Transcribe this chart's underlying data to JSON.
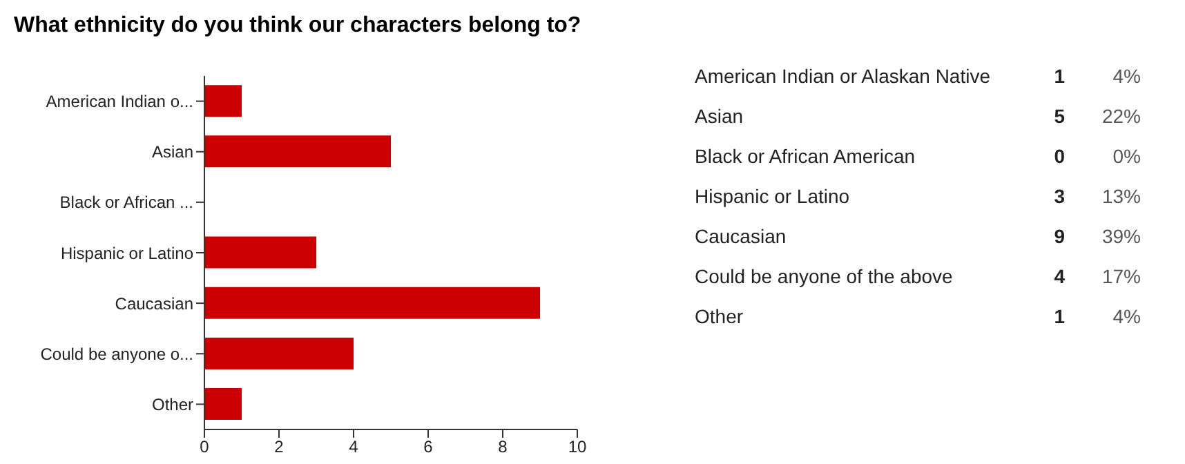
{
  "chart_data": [
    {
      "type": "bar",
      "orientation": "horizontal",
      "title": "What ethnicity do you think our characters belong to?",
      "categories": [
        "American Indian o...",
        "Asian",
        "Black or African ...",
        "Hispanic or Latino",
        "Caucasian",
        "Could be anyone o...",
        "Other"
      ],
      "values": [
        1,
        5,
        0,
        3,
        9,
        4,
        1
      ],
      "color": "#cc0000",
      "xlim": [
        0,
        10
      ],
      "xticks": [
        0,
        2,
        4,
        6,
        8,
        10
      ],
      "grid": false,
      "legend": false
    },
    {
      "type": "other",
      "categories": [
        "American Indian or Alaskan Native",
        "Asian",
        "Black or African American",
        "Hispanic or Latino",
        "Caucasian",
        "Could be anyone of the above",
        "Other"
      ],
      "series": [
        {
          "values": [
            1,
            5,
            0,
            3,
            9,
            4,
            1
          ]
        },
        {
          "values": [
            4,
            22,
            0,
            13,
            39,
            17,
            4
          ],
          "value_labels": [
            "4%",
            "22%",
            "0%",
            "13%",
            "39%",
            "17%",
            "4%"
          ]
        }
      ],
      "data_labels": true
    }
  ]
}
